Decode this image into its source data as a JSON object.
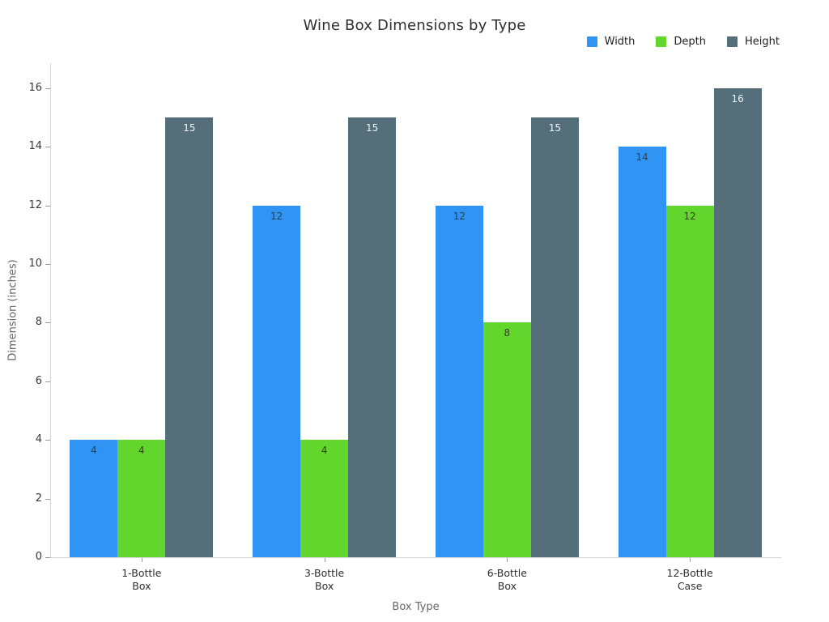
{
  "chart_data": {
    "type": "bar",
    "title": "Wine Box Dimensions by Type",
    "xlabel": "Box Type",
    "ylabel": "Dimension (inches)",
    "categories": [
      "1-Bottle\nBox",
      "3-Bottle\nBox",
      "6-Bottle\nBox",
      "12-Bottle\nCase"
    ],
    "series": [
      {
        "name": "Width",
        "color": "#2F94F4",
        "label_color": "#2e3f50",
        "values": [
          4,
          12,
          12,
          14
        ]
      },
      {
        "name": "Depth",
        "color": "#62D62D",
        "label_color": "#35411f",
        "values": [
          4,
          4,
          8,
          12
        ]
      },
      {
        "name": "Height",
        "color": "#546E7A",
        "label_color": "#f0f3f4",
        "values": [
          15,
          15,
          15,
          16
        ]
      }
    ],
    "ylim": [
      0,
      16
    ],
    "yticks": [
      0,
      2,
      4,
      6,
      8,
      10,
      12,
      14,
      16
    ],
    "legend_position": "top-right",
    "grid": false,
    "value_labels": true
  }
}
